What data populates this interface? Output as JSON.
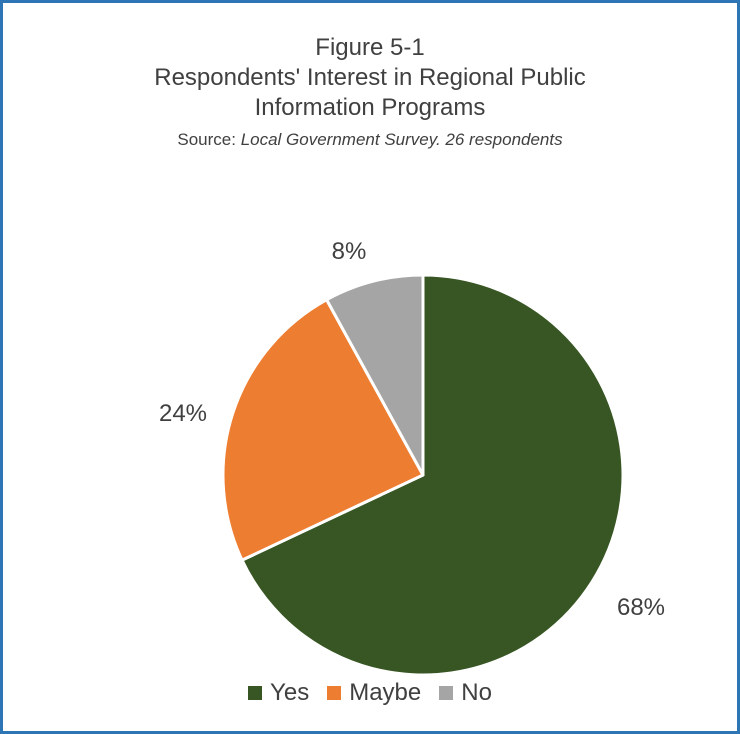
{
  "figure": {
    "title_lines": [
      "Figure 5-1",
      "Respondents' Interest in Regional Public",
      "Information Programs"
    ],
    "source_prefix": "Source:  ",
    "source_text": "Local Government Survey. 26 respondents"
  },
  "chart_data": {
    "type": "pie",
    "title": "Figure 5-1 Respondents' Interest in Regional Public Information Programs",
    "categories": [
      "Yes",
      "Maybe",
      "No"
    ],
    "values": [
      68,
      24,
      8
    ],
    "labels": [
      "68%",
      "24%",
      "8%"
    ],
    "colors": [
      "#375623",
      "#ed7d31",
      "#a5a5a5"
    ],
    "start_angle": "12 o'clock",
    "direction": "clockwise",
    "legend": "bottom"
  }
}
